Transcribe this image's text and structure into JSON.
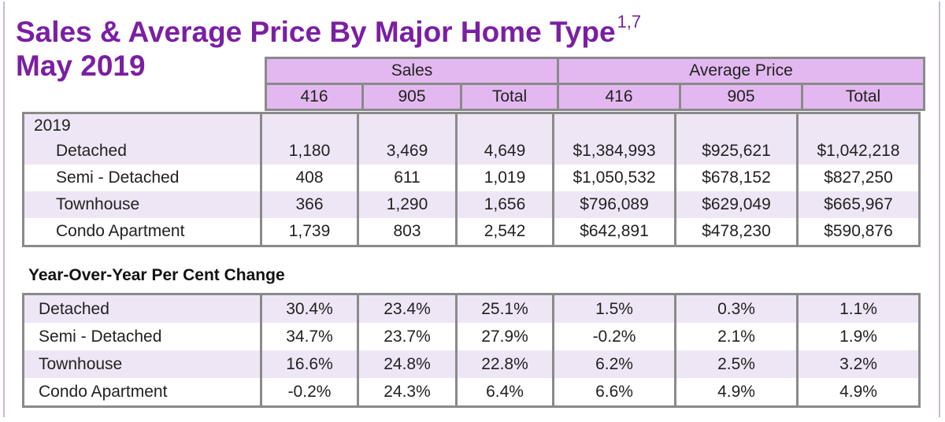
{
  "title": "Sales & Average Price By Major Home Type",
  "title_sup": "1,7",
  "subtitle": "May 2019",
  "headers": {
    "sales": "Sales",
    "avg_price": "Average Price",
    "cols": [
      "416",
      "905",
      "Total",
      "416",
      "905",
      "Total"
    ]
  },
  "year_label": "2019",
  "rows_2019": [
    {
      "label": "Detached",
      "values": [
        "1,180",
        "3,469",
        "4,649",
        "$1,384,993",
        "$925,621",
        "$1,042,218"
      ]
    },
    {
      "label": "Semi - Detached",
      "values": [
        "408",
        "611",
        "1,019",
        "$1,050,532",
        "$678,152",
        "$827,250"
      ]
    },
    {
      "label": "Townhouse",
      "values": [
        "366",
        "1,290",
        "1,656",
        "$796,089",
        "$629,049",
        "$665,967"
      ]
    },
    {
      "label": "Condo Apartment",
      "values": [
        "1,739",
        "803",
        "2,542",
        "$642,891",
        "$478,230",
        "$590,876"
      ]
    }
  ],
  "yoy_title": "Year-Over-Year Per Cent Change",
  "rows_yoy": [
    {
      "label": "Detached",
      "values": [
        "30.4%",
        "23.4%",
        "25.1%",
        "1.5%",
        "0.3%",
        "1.1%"
      ]
    },
    {
      "label": "Semi - Detached",
      "values": [
        "34.7%",
        "23.7%",
        "27.9%",
        "-0.2%",
        "2.1%",
        "1.9%"
      ]
    },
    {
      "label": "Townhouse",
      "values": [
        "16.6%",
        "24.8%",
        "22.8%",
        "6.2%",
        "2.5%",
        "3.2%"
      ]
    },
    {
      "label": "Condo Apartment",
      "values": [
        "-0.2%",
        "24.3%",
        "6.4%",
        "6.6%",
        "4.9%",
        "4.9%"
      ]
    }
  ]
}
